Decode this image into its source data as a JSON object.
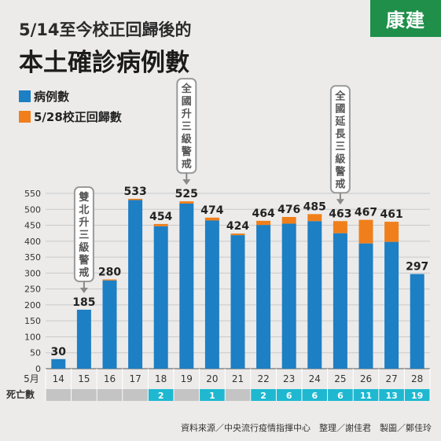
{
  "title_line1": "5/14至今校正回歸後的",
  "title_line2": "本土確診病例數",
  "logo_text": "康建",
  "legend": [
    {
      "label": "病例數",
      "color": "#1d7fc4"
    },
    {
      "label": "5/28校正回歸數",
      "color": "#f07f1b"
    }
  ],
  "chart_data": {
    "type": "bar",
    "stacked": true,
    "categories": [
      "14",
      "15",
      "16",
      "17",
      "18",
      "19",
      "20",
      "21",
      "22",
      "23",
      "24",
      "25",
      "26",
      "27",
      "28"
    ],
    "xlabel": "5月",
    "ylim": [
      0,
      550
    ],
    "yticks": [
      0,
      50,
      100,
      150,
      200,
      250,
      300,
      350,
      400,
      450,
      500,
      550
    ],
    "grid": true,
    "series": [
      {
        "name": "病例數",
        "color": "#1d7fc4",
        "values": [
          30,
          185,
          277,
          529,
          447,
          518,
          465,
          419,
          451,
          455,
          463,
          425,
          393,
          398,
          297
        ]
      },
      {
        "name": "5/28校正回歸數",
        "color": "#f07f1b",
        "values": [
          0,
          0,
          3,
          4,
          7,
          7,
          9,
          5,
          13,
          21,
          22,
          38,
          74,
          63,
          0
        ]
      }
    ],
    "totals": [
      "30",
      "185",
      "280",
      "533",
      "454",
      "525",
      "474",
      "424",
      "464",
      "476",
      "485",
      "463",
      "467",
      "461",
      "297"
    ],
    "annotations": [
      {
        "text": "雙北升三級警戒",
        "category": "15"
      },
      {
        "text": "全國升三級警戒",
        "category": "19"
      },
      {
        "text": "全國延長三級警戒",
        "category": "25"
      }
    ],
    "deaths_label": "死亡數",
    "deaths": [
      "",
      "",
      "",
      "",
      "2",
      "",
      "1",
      "",
      "2",
      "6",
      "6",
      "6",
      "11",
      "13",
      "19"
    ]
  },
  "source_text": "資料來源／中央流行疫情指揮中心　整理／謝佳君　製圖／鄭佳玲"
}
